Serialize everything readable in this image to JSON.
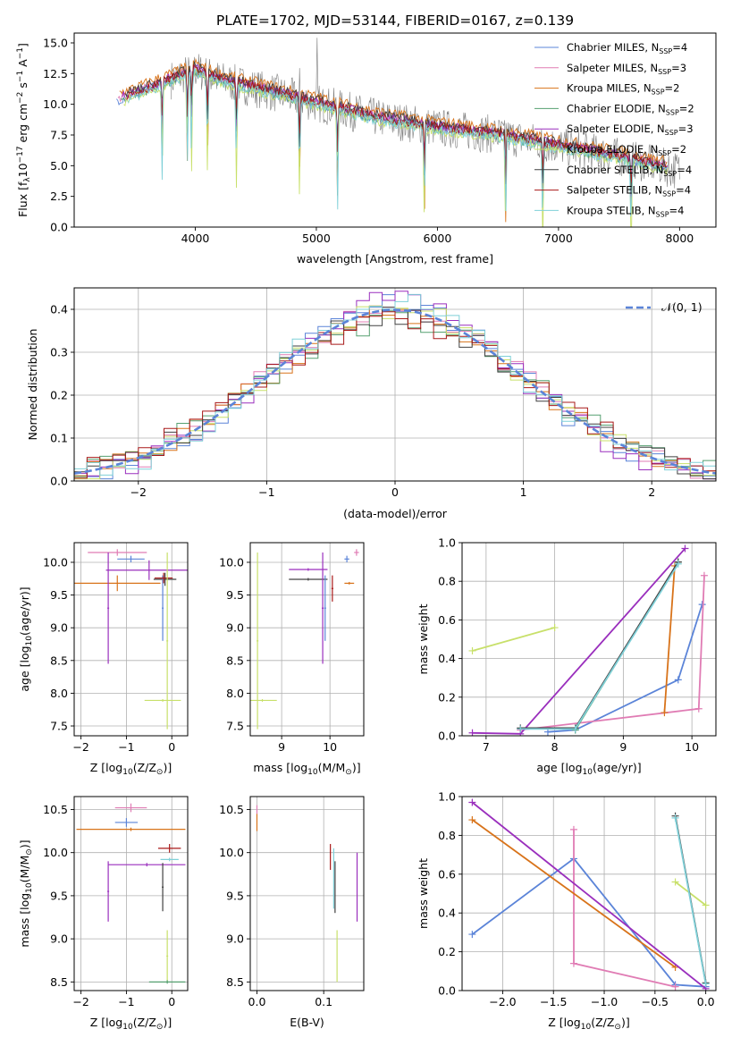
{
  "figure_title": "PLATE=1702, MJD=53144, FIBERID=0167, z=0.139",
  "colors": {
    "Chabrier MILES": "#5b84d8",
    "Salpeter MILES": "#e07cb4",
    "Kroupa MILES": "#d8731a",
    "Chabrier ELODIE": "#55a070",
    "Salpeter ELODIE": "#9a2fbd",
    "Kroupa ELODIE": "#c8e06a",
    "Chabrier STELIB": "#404040",
    "Salpeter STELIB": "#a81818",
    "Kroupa STELIB": "#7fd0d8",
    "data": "#7f7f7f",
    "normal_curve": "#5b84d8"
  },
  "chart_data": [
    {
      "id": "spectrum",
      "type": "line",
      "title": "PLATE=1702, MJD=53144, FIBERID=0167, z=0.139",
      "xlabel": "wavelength [Angstrom, rest frame]",
      "ylabel_parts": [
        "Flux [f",
        "λ",
        "10",
        "−17",
        " erg cm",
        "−2",
        " s",
        "−1",
        " A",
        "−1",
        "]"
      ],
      "xlim": [
        3000,
        8300
      ],
      "ylim": [
        0,
        15.8
      ],
      "xticks": [
        4000,
        5000,
        6000,
        7000,
        8000
      ],
      "xticklabels": [
        "4000",
        "5000",
        "6000",
        "7000",
        "8000"
      ],
      "yticks": [
        0,
        2.5,
        5,
        7.5,
        10,
        12.5,
        15
      ],
      "yticklabels": [
        "0.0",
        "2.5",
        "5.0",
        "7.5",
        "10.0",
        "12.5",
        "15.0"
      ],
      "grid": false,
      "legend_placement": "top-right",
      "continuum_x": [
        3350,
        3600,
        3800,
        4000,
        4200,
        4500,
        5000,
        5500,
        6000,
        6500,
        7000,
        7500,
        8000
      ],
      "continuum_y": [
        10.3,
        11.2,
        12.0,
        12.8,
        12.0,
        11.3,
        10.1,
        8.9,
        8.1,
        7.5,
        6.6,
        5.7,
        4.6
      ],
      "model_offsets": [
        0.0,
        0.2,
        0.55,
        -0.1,
        0.15,
        -0.25,
        0.3,
        0.1,
        -0.2
      ],
      "data_x_range": [
        3800,
        8000
      ],
      "absorption_lines": [
        3727,
        3934,
        3969,
        4101,
        4340,
        4861,
        5175,
        5892,
        6563,
        6870,
        7600
      ],
      "emission_lines": [
        3727,
        4861,
        5007,
        6563
      ],
      "legend": [
        {
          "base": "Chabrier MILES, N",
          "sub": "SSP",
          "tail": "=4"
        },
        {
          "base": "Salpeter MILES, N",
          "sub": "SSP",
          "tail": "=3"
        },
        {
          "base": "Kroupa MILES, N",
          "sub": "SSP",
          "tail": "=2"
        },
        {
          "base": "Chabrier ELODIE, N",
          "sub": "SSP",
          "tail": "=2"
        },
        {
          "base": "Salpeter ELODIE, N",
          "sub": "SSP",
          "tail": "=3"
        },
        {
          "base": "Kroupa ELODIE, N",
          "sub": "SSP",
          "tail": "=2"
        },
        {
          "base": "Chabrier STELIB, N",
          "sub": "SSP",
          "tail": "=4"
        },
        {
          "base": "Salpeter STELIB, N",
          "sub": "SSP",
          "tail": "=4"
        },
        {
          "base": "Kroupa STELIB, N",
          "sub": "SSP",
          "tail": "=4"
        }
      ]
    },
    {
      "id": "residuals",
      "type": "line",
      "xlabel": "(data-model)/error",
      "ylabel": "Normed distribution",
      "xlim": [
        -2.5,
        2.5
      ],
      "ylim": [
        0,
        0.45
      ],
      "xticks": [
        -2,
        -1,
        0,
        1,
        2
      ],
      "xticklabels": [
        "−2",
        "−1",
        "0",
        "1",
        "2"
      ],
      "yticks": [
        0,
        0.1,
        0.2,
        0.3,
        0.4
      ],
      "yticklabels": [
        "0.0",
        "0.1",
        "0.2",
        "0.3",
        "0.4"
      ],
      "grid": true,
      "legend_placement": "top-right",
      "legend_label": "𝒩(0, 1)",
      "bin_width": 0.1,
      "normal_mean": 0,
      "normal_sigma": 1
    },
    {
      "id": "age-vs-Z",
      "type": "scatter",
      "xlabel_parts": [
        "Z [log",
        "10",
        "(Z/Z",
        "⊙",
        ")]"
      ],
      "ylabel_parts": [
        "age  [log",
        "10",
        "(age/yr)]"
      ],
      "xlim": [
        -2.15,
        0.35
      ],
      "ylim": [
        7.35,
        10.3
      ],
      "xticks": [
        -2,
        -1,
        0
      ],
      "xticklabels": [
        "−2",
        "−1",
        "0"
      ],
      "yticks": [
        7.5,
        8.0,
        8.5,
        9.0,
        9.5,
        10.0
      ],
      "yticklabels": [
        "7.5",
        "8.0",
        "8.5",
        "9.0",
        "9.5",
        "10.0"
      ],
      "grid": true,
      "points": [
        {
          "model": "Chabrier MILES",
          "x": -0.9,
          "y": 10.05,
          "xerr": 0.3,
          "yerr": 0.05
        },
        {
          "model": "Salpeter MILES",
          "x": -1.2,
          "y": 10.15,
          "xerr": 0.65,
          "yerr": 0.05
        },
        {
          "model": "Kroupa MILES",
          "x": -1.2,
          "y": 9.68,
          "xerr": 0.95,
          "yerr": 0.12
        },
        {
          "model": "Salpeter ELODIE",
          "x": -0.5,
          "y": 9.88,
          "xerr": 0.95,
          "yerr": 0.15
        },
        {
          "model": "Salpeter ELODIE",
          "x": -1.4,
          "y": 9.3,
          "xerr": 0.02,
          "yerr": 0.85
        },
        {
          "model": "Chabrier STELIB",
          "x": -0.15,
          "y": 9.74,
          "xerr": 0.25,
          "yerr": 0.1
        },
        {
          "model": "Chabrier MILES",
          "x": -0.2,
          "y": 9.3,
          "xerr": 0.02,
          "yerr": 0.5
        },
        {
          "model": "Salpeter STELIB",
          "x": -0.18,
          "y": 9.76,
          "xerr": 0.2,
          "yerr": 0.08
        },
        {
          "model": "Kroupa ELODIE",
          "x": -0.1,
          "y": 8.8,
          "xerr": 0.02,
          "yerr": 1.35
        },
        {
          "model": "Kroupa ELODIE",
          "x": -0.2,
          "y": 7.89,
          "xerr": 0.4,
          "yerr": 0.02
        }
      ]
    },
    {
      "id": "age-vs-mass",
      "type": "scatter",
      "xlabel_parts": [
        "mass [log",
        "10",
        "(M/M",
        "⊙",
        ")]"
      ],
      "xlim": [
        8.35,
        10.7
      ],
      "ylim": [
        7.35,
        10.3
      ],
      "xticks": [
        9,
        10
      ],
      "xticklabels": [
        "9",
        "10"
      ],
      "yticks": [
        7.5,
        8.0,
        8.5,
        9.0,
        9.5,
        10.0
      ],
      "yticklabels": [
        "7.5",
        "8.0",
        "8.5",
        "9.0",
        "9.5",
        "10.0"
      ],
      "grid": true,
      "points": [
        {
          "model": "Kroupa ELODIE",
          "x": 8.5,
          "y": 8.8,
          "xerr": 0.02,
          "yerr": 1.35
        },
        {
          "model": "Kroupa ELODIE",
          "x": 8.6,
          "y": 7.89,
          "xerr": 0.3,
          "yerr": 0.02
        },
        {
          "model": "Salpeter ELODIE",
          "x": 9.55,
          "y": 9.89,
          "xerr": 0.4,
          "yerr": 0.02
        },
        {
          "model": "Chabrier STELIB",
          "x": 9.55,
          "y": 9.74,
          "xerr": 0.4,
          "yerr": 0.02
        },
        {
          "model": "Salpeter ELODIE",
          "x": 9.85,
          "y": 9.3,
          "xerr": 0.02,
          "yerr": 0.85
        },
        {
          "model": "Chabrier MILES",
          "x": 9.9,
          "y": 9.3,
          "xerr": 0.02,
          "yerr": 0.5
        },
        {
          "model": "Salpeter STELIB",
          "x": 10.05,
          "y": 9.6,
          "xerr": 0.02,
          "yerr": 0.2
        },
        {
          "model": "Kroupa MILES",
          "x": 10.4,
          "y": 9.68,
          "xerr": 0.1,
          "yerr": 0.02
        },
        {
          "model": "Chabrier MILES",
          "x": 10.35,
          "y": 10.05,
          "xerr": 0.05,
          "yerr": 0.05
        },
        {
          "model": "Salpeter MILES",
          "x": 10.55,
          "y": 10.15,
          "xerr": 0.05,
          "yerr": 0.05
        }
      ]
    },
    {
      "id": "mass-weight-vs-age",
      "type": "line",
      "xlabel_parts": [
        "age  [log",
        "10",
        "(age/yr)]"
      ],
      "ylabel": "mass weight",
      "xlim": [
        6.65,
        10.35
      ],
      "ylim": [
        0,
        1.0
      ],
      "xticks": [
        7,
        8,
        9,
        10
      ],
      "xticklabels": [
        "7",
        "8",
        "9",
        "10"
      ],
      "yticks": [
        0,
        0.2,
        0.4,
        0.6,
        0.8,
        1.0
      ],
      "yticklabels": [
        "0.0",
        "0.2",
        "0.4",
        "0.6",
        "0.8",
        "1.0"
      ],
      "grid": true,
      "series": [
        {
          "model": "Chabrier MILES",
          "x": [
            7.9,
            8.3,
            9.8,
            10.15
          ],
          "y": [
            0.02,
            0.03,
            0.29,
            0.68
          ]
        },
        {
          "model": "Salpeter MILES",
          "x": [
            7.5,
            10.1,
            10.18
          ],
          "y": [
            0.03,
            0.14,
            0.83
          ]
        },
        {
          "model": "Kroupa MILES",
          "x": [
            9.6,
            9.75
          ],
          "y": [
            0.12,
            0.88
          ]
        },
        {
          "model": "Chabrier ELODIE",
          "x": [
            8.3,
            9.8
          ],
          "y": [
            0.03,
            0.9
          ]
        },
        {
          "model": "Salpeter ELODIE",
          "x": [
            6.8,
            7.5,
            9.9
          ],
          "y": [
            0.015,
            0.01,
            0.97
          ]
        },
        {
          "model": "Kroupa ELODIE",
          "x": [
            6.8,
            8.0
          ],
          "y": [
            0.44,
            0.56
          ]
        },
        {
          "model": "Chabrier STELIB",
          "x": [
            7.5,
            8.3,
            9.8
          ],
          "y": [
            0.04,
            0.04,
            0.9
          ]
        },
        {
          "model": "Kroupa STELIB",
          "x": [
            7.5,
            8.3,
            9.8
          ],
          "y": [
            0.035,
            0.035,
            0.89
          ]
        }
      ]
    },
    {
      "id": "mass-vs-Z",
      "type": "scatter",
      "xlabel_parts": [
        "Z [log",
        "10",
        "(Z/Z",
        "⊙",
        ")]"
      ],
      "ylabel_parts": [
        "mass [log",
        "10",
        "(M/M",
        "⊙",
        ")]"
      ],
      "xlim": [
        -2.15,
        0.35
      ],
      "ylim": [
        8.4,
        10.65
      ],
      "xticks": [
        -2,
        -1,
        0
      ],
      "xticklabels": [
        "−2",
        "−1",
        "0"
      ],
      "yticks": [
        8.5,
        9.0,
        9.5,
        10.0,
        10.5
      ],
      "yticklabels": [
        "8.5",
        "9.0",
        "9.5",
        "10.0",
        "10.5"
      ],
      "grid": true,
      "points": [
        {
          "model": "Salpeter MILES",
          "x": -0.9,
          "y": 10.52,
          "xerr": 0.35,
          "yerr": 0.05
        },
        {
          "model": "Chabrier MILES",
          "x": -1.0,
          "y": 10.35,
          "xerr": 0.25,
          "yerr": 0.05
        },
        {
          "model": "Kroupa MILES",
          "x": -0.9,
          "y": 10.27,
          "xerr": 1.2,
          "yerr": 0.02
        },
        {
          "model": "Salpeter STELIB",
          "x": -0.05,
          "y": 10.05,
          "xerr": 0.25,
          "yerr": 0.05
        },
        {
          "model": "Kroupa STELIB",
          "x": -0.05,
          "y": 9.92,
          "xerr": 0.2,
          "yerr": 0.02
        },
        {
          "model": "Salpeter ELODIE",
          "x": -0.55,
          "y": 9.86,
          "xerr": 0.85,
          "yerr": 0.02
        },
        {
          "model": "Salpeter ELODIE",
          "x": -1.4,
          "y": 9.55,
          "xerr": 0.02,
          "yerr": 0.35
        },
        {
          "model": "Chabrier STELIB",
          "x": -0.2,
          "y": 9.6,
          "xerr": 0.02,
          "yerr": 0.28
        },
        {
          "model": "Kroupa ELODIE",
          "x": -0.1,
          "y": 8.8,
          "xerr": 0.02,
          "yerr": 0.3
        },
        {
          "model": "Chabrier ELODIE",
          "x": -0.1,
          "y": 8.5,
          "xerr": 0.4,
          "yerr": 0.02
        }
      ]
    },
    {
      "id": "mass-vs-EBV",
      "type": "scatter",
      "xlabel": "E(B-V)",
      "xlim": [
        -0.01,
        0.16
      ],
      "ylim": [
        8.4,
        10.65
      ],
      "xticks": [
        0.0,
        0.1
      ],
      "xticklabels": [
        "0.0",
        "0.1"
      ],
      "yticks": [
        8.5,
        9.0,
        9.5,
        10.0,
        10.5
      ],
      "yticklabels": [
        "8.5",
        "9.0",
        "9.5",
        "10.0",
        "10.5"
      ],
      "grid": true,
      "points": [
        {
          "model": "Kroupa MILES",
          "x": 0.0,
          "y": 10.35,
          "xerr": 0.0,
          "yerr": 0.1
        },
        {
          "model": "Salpeter MILES",
          "x": 0.0,
          "y": 10.5,
          "xerr": 0.0,
          "yerr": 0.05
        },
        {
          "model": "Salpeter STELIB",
          "x": 0.11,
          "y": 9.95,
          "xerr": 0.0,
          "yerr": 0.15
        },
        {
          "model": "Kroupa STELIB",
          "x": 0.115,
          "y": 9.7,
          "xerr": 0.0,
          "yerr": 0.35
        },
        {
          "model": "Chabrier STELIB",
          "x": 0.117,
          "y": 9.6,
          "xerr": 0.0,
          "yerr": 0.3
        },
        {
          "model": "Salpeter ELODIE",
          "x": 0.15,
          "y": 9.6,
          "xerr": 0.0,
          "yerr": 0.4
        },
        {
          "model": "Kroupa ELODIE",
          "x": 0.12,
          "y": 8.8,
          "xerr": 0.0,
          "yerr": 0.3
        }
      ]
    },
    {
      "id": "mass-weight-vs-Z",
      "type": "line",
      "xlabel_parts": [
        "Z [log",
        "10",
        "(Z/Z",
        "⊙",
        ")]"
      ],
      "ylabel": "mass weight",
      "xlim": [
        -2.4,
        0.1
      ],
      "ylim": [
        0,
        1.0
      ],
      "xticks": [
        -2.0,
        -1.5,
        -1.0,
        -0.5,
        0.0
      ],
      "xticklabels": [
        "−2.0",
        "−1.5",
        "−1.0",
        "−0.5",
        "0.0"
      ],
      "yticks": [
        0,
        0.2,
        0.4,
        0.6,
        0.8,
        1.0
      ],
      "yticklabels": [
        "0.0",
        "0.2",
        "0.4",
        "0.6",
        "0.8",
        "1.0"
      ],
      "grid": true,
      "series": [
        {
          "model": "Chabrier MILES",
          "x": [
            -2.3,
            -1.3,
            -0.3,
            0.0
          ],
          "y": [
            0.29,
            0.68,
            0.03,
            0.02
          ]
        },
        {
          "model": "Salpeter MILES",
          "x": [
            -1.3,
            -1.3,
            -0.3
          ],
          "y": [
            0.83,
            0.14,
            0.02
          ]
        },
        {
          "model": "Kroupa MILES",
          "x": [
            -2.3,
            -0.3
          ],
          "y": [
            0.88,
            0.12
          ]
        },
        {
          "model": "Salpeter ELODIE",
          "x": [
            -2.3,
            0.0
          ],
          "y": [
            0.97,
            0.01
          ]
        },
        {
          "model": "Kroupa ELODIE",
          "x": [
            -0.3,
            0.0
          ],
          "y": [
            0.56,
            0.44
          ]
        },
        {
          "model": "Chabrier STELIB",
          "x": [
            -0.3,
            0.0
          ],
          "y": [
            0.9,
            0.04
          ]
        },
        {
          "model": "Kroupa STELIB",
          "x": [
            -0.3,
            0.0
          ],
          "y": [
            0.89,
            0.035
          ]
        }
      ]
    }
  ]
}
